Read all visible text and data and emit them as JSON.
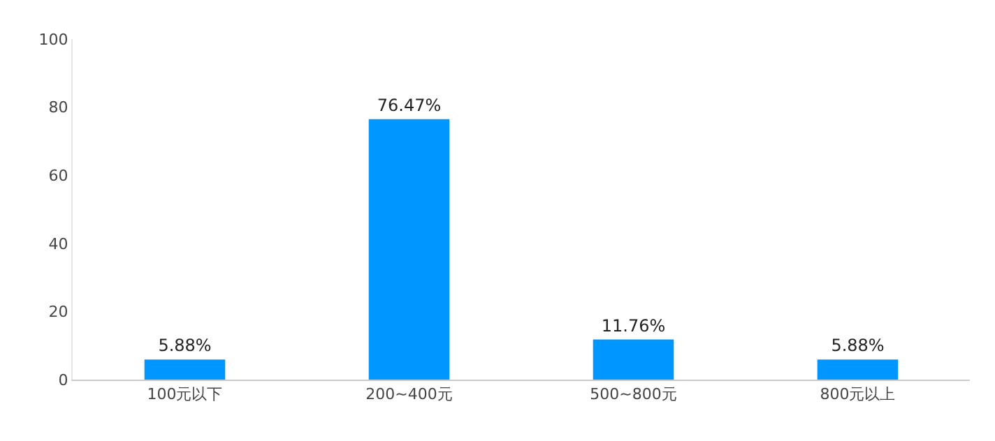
{
  "chart_data": {
    "type": "bar",
    "categories": [
      "100元以下",
      "200~400元",
      "500~800元",
      "800元以上"
    ],
    "values": [
      5.88,
      76.47,
      11.76,
      5.88
    ],
    "value_labels": [
      "5.88%",
      "76.47%",
      "11.76%",
      "5.88%"
    ],
    "color": "#0096ff",
    "ylim": [
      0,
      100
    ],
    "yticks": [
      0,
      20,
      40,
      60,
      80,
      100
    ],
    "grid": false,
    "legend": false
  }
}
